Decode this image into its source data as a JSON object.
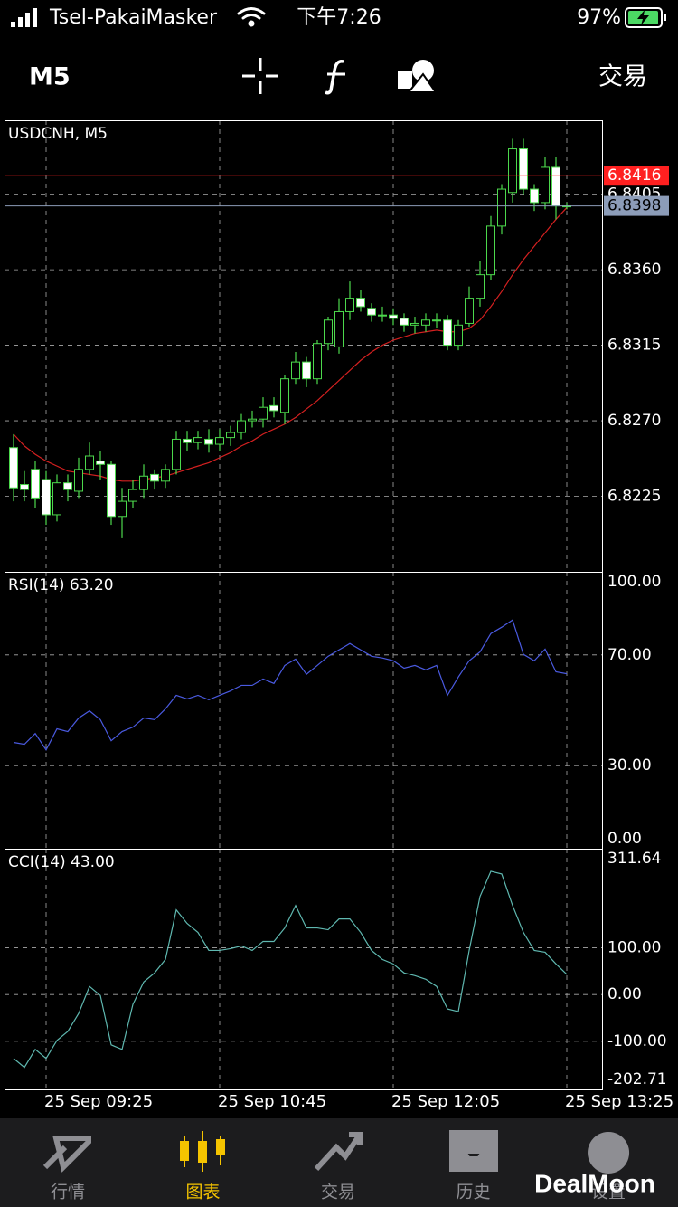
{
  "status_bar": {
    "carrier": "Tsel-PakaiMasker",
    "time": "下午7:26",
    "battery": "97%"
  },
  "toolbar": {
    "timeframe": "M5",
    "trade": "交易"
  },
  "chart_data": [
    {
      "type": "candlestick",
      "title": "USDCNH, M5",
      "categories": [
        null,
        null,
        null,
        "25 Sep 09:25",
        null,
        null,
        null,
        null,
        null,
        null,
        null,
        null,
        null,
        null,
        null,
        null,
        null,
        null,
        null,
        "25 Sep 10:45",
        null,
        null,
        null,
        null,
        null,
        null,
        null,
        null,
        null,
        null,
        null,
        null,
        null,
        null,
        null,
        "25 Sep 12:05",
        null,
        null,
        null,
        null,
        null,
        null,
        null,
        null,
        null,
        null,
        null,
        null,
        null,
        null,
        null,
        "25 Sep 13:25"
      ],
      "open": [
        6.8254,
        6.8232,
        6.8241,
        6.8235,
        6.8214,
        6.8233,
        6.8228,
        6.8241,
        6.8246,
        6.8244,
        6.8213,
        6.8222,
        6.8229,
        6.8238,
        6.8234,
        6.8241,
        6.8259,
        6.8257,
        6.8259,
        6.8256,
        6.826,
        6.8263,
        6.827,
        6.8271,
        6.8279,
        6.8275,
        6.8295,
        6.8305,
        6.8295,
        6.8316,
        6.8314,
        6.8335,
        6.8343,
        6.8337,
        6.8333,
        6.8333,
        6.8331,
        6.8327,
        6.8327,
        6.833,
        6.833,
        6.8315,
        6.8328,
        6.8343,
        6.8357,
        6.8386,
        6.8406,
        6.8432,
        6.8408,
        6.84,
        6.8421,
        6.8398
      ],
      "high": [
        6.8262,
        6.824,
        6.8246,
        6.824,
        6.8238,
        6.8238,
        6.8248,
        6.8257,
        6.8252,
        6.8246,
        6.823,
        6.8235,
        6.8244,
        6.8241,
        6.8244,
        6.8264,
        6.8264,
        6.8264,
        6.8265,
        6.8265,
        6.8267,
        6.8274,
        6.8276,
        6.8284,
        6.8284,
        6.8297,
        6.8311,
        6.8308,
        6.8318,
        6.8332,
        6.8343,
        6.8353,
        6.8348,
        6.834,
        6.8338,
        6.8337,
        6.8334,
        6.8332,
        6.8334,
        6.8334,
        6.8333,
        6.833,
        6.835,
        6.8365,
        6.8392,
        6.8411,
        6.8438,
        6.8438,
        6.8411,
        6.8427,
        6.8427,
        6.84
      ],
      "low": [
        6.8222,
        6.8222,
        6.8218,
        6.8208,
        6.821,
        6.8222,
        6.8224,
        6.8238,
        6.8235,
        6.8208,
        6.82,
        6.8218,
        6.8224,
        6.8229,
        6.823,
        6.8238,
        6.8252,
        6.8253,
        6.8251,
        6.8252,
        6.8255,
        6.8259,
        6.8266,
        6.8266,
        6.8272,
        6.8268,
        6.8292,
        6.829,
        6.8292,
        6.8312,
        6.831,
        6.833,
        6.8335,
        6.8329,
        6.8329,
        6.8327,
        6.8323,
        6.8322,
        6.8323,
        6.8325,
        6.8312,
        6.8312,
        6.8326,
        6.8338,
        6.8354,
        6.8381,
        6.84,
        6.8405,
        6.8395,
        6.8396,
        6.839,
        6.8396
      ],
      "close": [
        6.823,
        6.8229,
        6.8224,
        6.8214,
        6.8233,
        6.8229,
        6.8241,
        6.8249,
        6.8244,
        6.8213,
        6.8222,
        6.8229,
        6.8237,
        6.8234,
        6.8241,
        6.8259,
        6.8257,
        6.826,
        6.8256,
        6.826,
        6.8263,
        6.827,
        6.8271,
        6.8278,
        6.8276,
        6.8295,
        6.8305,
        6.8295,
        6.8316,
        6.833,
        6.8335,
        6.8343,
        6.8338,
        6.8333,
        6.8333,
        6.8331,
        6.8327,
        6.8328,
        6.833,
        6.833,
        6.8315,
        6.8327,
        6.8343,
        6.8357,
        6.8386,
        6.8408,
        6.8432,
        6.8408,
        6.84,
        6.8421,
        6.8398,
        6.8398
      ],
      "up_fill": "#000000",
      "down_fill": "#ffffff",
      "wick_color": "#4cd94c",
      "ma": {
        "color": "#d42020",
        "values": [
          6.8262,
          6.8255,
          6.825,
          6.8246,
          6.8243,
          6.824,
          6.8239,
          6.8238,
          6.8237,
          6.8235,
          6.8234,
          6.8234,
          6.8235,
          6.8236,
          6.8237,
          6.8239,
          6.8241,
          6.8243,
          6.8245,
          6.8248,
          6.8251,
          6.8255,
          6.8258,
          6.8262,
          6.8265,
          6.8268,
          6.8272,
          6.8277,
          6.8282,
          6.8288,
          6.8294,
          6.83,
          6.8306,
          6.8311,
          6.8315,
          6.8318,
          6.832,
          6.8322,
          6.8323,
          6.8324,
          6.8323,
          6.8323,
          6.8325,
          6.833,
          6.8338,
          6.8347,
          6.8357,
          6.8366,
          6.8374,
          6.8382,
          6.839,
          6.8397
        ]
      },
      "price_lines": [
        {
          "value": 6.8416,
          "color": "#ff2020",
          "label_color": "#ffffff"
        },
        {
          "value": 6.8398,
          "color": "#8c9cb8",
          "label_color": "#000000"
        }
      ],
      "ylim": [
        6.818,
        6.8449
      ],
      "yticks": [
        6.8225,
        {
          "value": 6.827,
          "label": "6.8270"
        },
        6.8315,
        {
          "value": 6.836,
          "label": "6.8360"
        },
        6.8405
      ],
      "grid": true
    },
    {
      "type": "line",
      "title": "RSI(14) 63.20",
      "series": [
        {
          "color": "#4a5ae0",
          "values": [
            38.4,
            37.7,
            41.6,
            35.7,
            43.3,
            42.3,
            47.2,
            49.8,
            46.6,
            39.0,
            42.3,
            43.9,
            47.2,
            46.6,
            50.5,
            55.4,
            54.1,
            55.4,
            53.8,
            55.4,
            57.0,
            59.0,
            59.0,
            61.3,
            59.7,
            66.2,
            68.5,
            63.0,
            66.2,
            69.5,
            71.8,
            74.1,
            71.8,
            69.5,
            68.9,
            67.9,
            65.2,
            66.2,
            64.6,
            66.2,
            55.4,
            62.0,
            67.9,
            71.1,
            77.7,
            80.0,
            82.6,
            70.2,
            67.9,
            72.1,
            63.9,
            63.2
          ]
        }
      ],
      "ylim": [
        0,
        100
      ],
      "yticks": [
        {
          "value": 0,
          "label": "0.00"
        },
        {
          "value": 30,
          "label": "30.00"
        },
        {
          "value": 70,
          "label": "70.00"
        },
        {
          "value": 100,
          "label": "100.00"
        }
      ],
      "grid": true
    },
    {
      "type": "line",
      "title": "CCI(14) 43.00",
      "series": [
        {
          "color": "#5fb8b0",
          "values": [
            -136.5,
            -155.8,
            -117.3,
            -136.5,
            -98.1,
            -78.8,
            -40.4,
            17.3,
            -1.9,
            -107.7,
            -117.3,
            -21.2,
            26.9,
            46.2,
            75.0,
            180.8,
            151.9,
            132.7,
            94.2,
            94.2,
            98.1,
            103.8,
            94.2,
            113.5,
            113.5,
            142.3,
            190.4,
            142.3,
            142.3,
            138.5,
            161.5,
            161.5,
            132.7,
            94.2,
            75.0,
            65.4,
            46.2,
            40.4,
            32.7,
            17.3,
            -30.8,
            -36.5,
            94.2,
            209.6,
            263.5,
            257.7,
            190.4,
            132.7,
            94.2,
            90.4,
            65.4,
            43.0
          ]
        }
      ],
      "ylim": [
        -202.71,
        311.64
      ],
      "yticks": [
        -202.71,
        {
          "value": -100,
          "label": "-100.00"
        },
        {
          "value": 0,
          "label": "0.00"
        },
        {
          "value": 100,
          "label": "100.00"
        },
        311.64
      ],
      "grid": true
    }
  ],
  "tab_bar": {
    "tabs": [
      "行情",
      "图表",
      "交易",
      "历史",
      "设置"
    ],
    "active": 1
  },
  "watermark": "DealMoon"
}
